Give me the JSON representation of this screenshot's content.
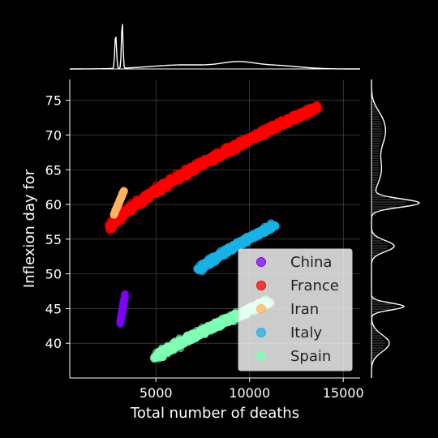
{
  "chart_data": {
    "type": "scatter",
    "xlabel": "Total number of deaths",
    "ylabel": "Inflexion day for",
    "xlim": [
      400,
      15900
    ],
    "ylim": [
      35,
      78
    ],
    "x_ticks": [
      5000,
      10000,
      15000
    ],
    "y_ticks": [
      40,
      45,
      50,
      55,
      60,
      65,
      70,
      75
    ],
    "grid": true,
    "legend_position": "lower-right",
    "background": "#000000",
    "series": [
      {
        "name": "China",
        "color": "#8000ff",
        "x": [
          3100,
          3350
        ],
        "y": [
          43,
          47
        ]
      },
      {
        "name": "France",
        "color": "#ff0000",
        "x": [
          2500,
          13600
        ],
        "y": [
          56.5,
          74
        ]
      },
      {
        "name": "Iran",
        "color": "#ffb360",
        "x": [
          2750,
          3300
        ],
        "y": [
          58.5,
          62
        ]
      },
      {
        "name": "Italy",
        "color": "#1ab2e6",
        "x": [
          7300,
          11300
        ],
        "y": [
          50.5,
          57
        ]
      },
      {
        "name": "Spain",
        "color": "#80ffb4",
        "x": [
          5000,
          11000
        ],
        "y": [
          38,
          46
        ]
      }
    ],
    "marginal_top": "density of total number of deaths",
    "marginal_right": "density of inflexion day"
  }
}
